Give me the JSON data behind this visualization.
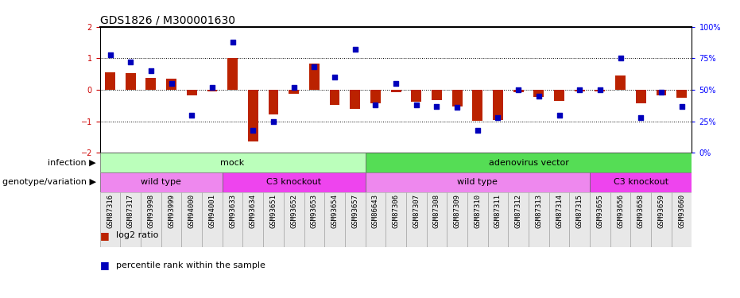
{
  "title": "GDS1826 / M300001630",
  "samples": [
    "GSM87316",
    "GSM87317",
    "GSM93998",
    "GSM93999",
    "GSM94000",
    "GSM94001",
    "GSM93633",
    "GSM93634",
    "GSM93651",
    "GSM93652",
    "GSM93653",
    "GSM93654",
    "GSM93657",
    "GSM86643",
    "GSM87306",
    "GSM87307",
    "GSM87308",
    "GSM87309",
    "GSM87310",
    "GSM87311",
    "GSM87312",
    "GSM87313",
    "GSM87314",
    "GSM87315",
    "GSM93655",
    "GSM93656",
    "GSM93658",
    "GSM93659",
    "GSM93660"
  ],
  "log2_ratio": [
    0.55,
    0.52,
    0.38,
    0.35,
    -0.18,
    -0.06,
    1.02,
    -1.65,
    -0.78,
    -0.12,
    0.82,
    -0.48,
    -0.62,
    -0.42,
    -0.08,
    -0.38,
    -0.32,
    -0.52,
    -0.98,
    -0.95,
    -0.08,
    -0.22,
    -0.35,
    -0.04,
    -0.06,
    0.45,
    -0.42,
    -0.18,
    -0.26
  ],
  "percentile_rank": [
    78,
    72,
    65,
    55,
    30,
    52,
    88,
    18,
    25,
    52,
    68,
    60,
    82,
    38,
    55,
    38,
    37,
    36,
    18,
    28,
    50,
    45,
    30,
    50,
    50,
    75,
    28,
    48,
    37
  ],
  "infection_groups": [
    {
      "label": "mock",
      "start": 0,
      "end": 12,
      "color": "#BBFFBB"
    },
    {
      "label": "adenovirus vector",
      "start": 13,
      "end": 28,
      "color": "#55DD55"
    }
  ],
  "genotype_groups": [
    {
      "label": "wild type",
      "start": 0,
      "end": 5,
      "color": "#EE88EE"
    },
    {
      "label": "C3 knockout",
      "start": 6,
      "end": 12,
      "color": "#EE44EE"
    },
    {
      "label": "wild type",
      "start": 13,
      "end": 23,
      "color": "#EE88EE"
    },
    {
      "label": "C3 knockout",
      "start": 24,
      "end": 28,
      "color": "#EE44EE"
    }
  ],
  "bar_color": "#BB2200",
  "dot_color": "#0000BB",
  "ytick_color": "#CC0000",
  "ylim": [
    -2,
    2
  ],
  "y2lim": [
    0,
    100
  ],
  "yticks_left": [
    -2,
    -1,
    0,
    1,
    2
  ],
  "yticks_right": [
    0,
    25,
    50,
    75,
    100
  ],
  "ytick_labels_right": [
    "0%",
    "25%",
    "50%",
    "75%",
    "100%"
  ],
  "hlines": [
    -1,
    0,
    1
  ],
  "infection_label": "infection",
  "genotype_label": "genotype/variation",
  "legend_bar_label": "log2 ratio",
  "legend_dot_label": "percentile rank within the sample",
  "title_fontsize": 10,
  "tick_fontsize": 7,
  "sample_fontsize": 6.5,
  "annotation_fontsize": 8,
  "label_fontsize": 8
}
